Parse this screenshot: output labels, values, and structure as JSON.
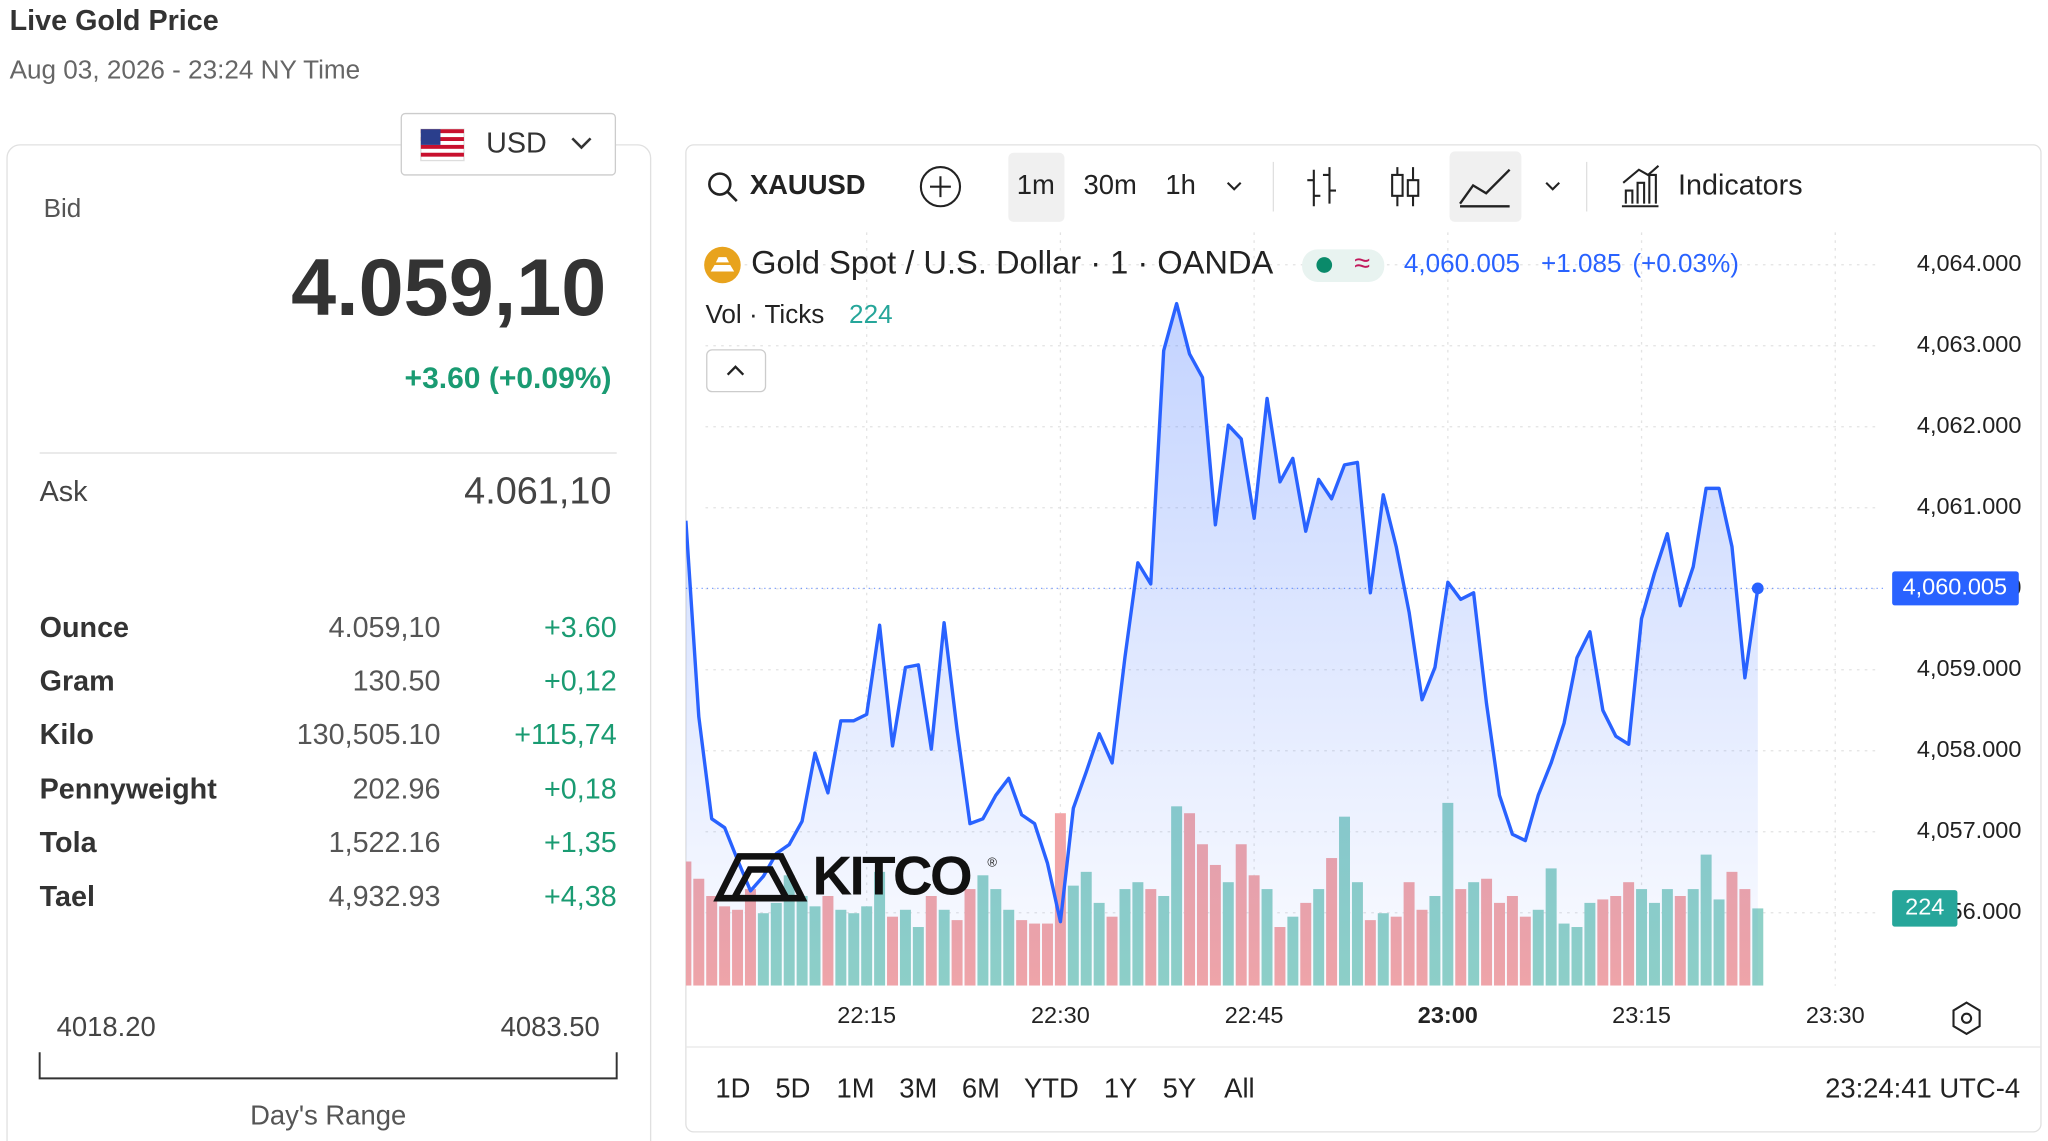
{
  "header": {
    "title": "Live Gold Price",
    "subtitle": "Aug 03, 2026 - 23:24 NY Time"
  },
  "price_panel": {
    "currency": "USD",
    "bid_label": "Bid",
    "bid": "4.059,10",
    "bid_change": "+3.60 (+0.09%)",
    "ask_label": "Ask",
    "ask": "4.061,10",
    "units": [
      {
        "name": "Ounce",
        "price": "4.059,10",
        "change": "+3.60"
      },
      {
        "name": "Gram",
        "price": "130.50",
        "change": "+0,12"
      },
      {
        "name": "Kilo",
        "price": "130,505.10",
        "change": "+115,74"
      },
      {
        "name": "Pennyweight",
        "price": "202.96",
        "change": "+0,18"
      },
      {
        "name": "Tola",
        "price": "1,522.16",
        "change": "+1,35"
      },
      {
        "name": "Tael",
        "price": "4,932.93",
        "change": "+4,38"
      }
    ],
    "range_low": "4018.20",
    "range_high": "4083.50",
    "range_label": "Day's Range"
  },
  "toolbar": {
    "symbol": "XAUUSD",
    "intervals": [
      "1m",
      "30m",
      "1h"
    ],
    "indicators": "Indicators"
  },
  "chart_data": {
    "type": "line",
    "title": "Gold Spot / U.S. Dollar · 1 · OANDA",
    "approx": "≈",
    "last": "4,060.005",
    "change": "+1.085",
    "change_pct": "(+0.03%)",
    "volume_title": "Vol · Ticks",
    "watermark": "KITCO",
    "watermark_mark": "®",
    "color": "#2962ff",
    "x": [
      "22:01",
      "22:02",
      "22:03",
      "22:04",
      "22:05",
      "22:06",
      "22:07",
      "22:08",
      "22:09",
      "22:10",
      "22:11",
      "22:12",
      "22:13",
      "22:14",
      "22:15",
      "22:16",
      "22:17",
      "22:18",
      "22:19",
      "22:20",
      "22:21",
      "22:22",
      "22:23",
      "22:24",
      "22:25",
      "22:26",
      "22:27",
      "22:28",
      "22:29",
      "22:30",
      "22:31",
      "22:32",
      "22:33",
      "22:34",
      "22:35",
      "22:36",
      "22:37",
      "22:38",
      "22:39",
      "22:40",
      "22:41",
      "22:42",
      "22:43",
      "22:44",
      "22:45",
      "22:46",
      "22:47",
      "22:48",
      "22:49",
      "22:50",
      "22:51",
      "22:52",
      "22:53",
      "22:54",
      "22:55",
      "22:56",
      "22:57",
      "22:58",
      "22:59",
      "23:00",
      "23:01",
      "23:02",
      "23:03",
      "23:04",
      "23:05",
      "23:06",
      "23:07",
      "23:08",
      "23:09",
      "23:10",
      "23:11",
      "23:12",
      "23:13",
      "23:14",
      "23:15",
      "23:16",
      "23:17",
      "23:18",
      "23:19",
      "23:20",
      "23:21",
      "23:22",
      "23:23",
      "23:24"
    ],
    "values": [
      4060.84,
      4058.42,
      4057.16,
      4057.05,
      4056.65,
      4056.27,
      4056.45,
      4056.73,
      4056.84,
      4057.13,
      4057.97,
      4057.48,
      4058.37,
      4058.37,
      4058.45,
      4059.55,
      4058.06,
      4059.03,
      4059.06,
      4058.02,
      4059.58,
      4058.26,
      4057.1,
      4057.16,
      4057.45,
      4057.66,
      4057.21,
      4057.1,
      4056.61,
      4055.89,
      4057.29,
      4057.74,
      4058.21,
      4057.85,
      4059.15,
      4060.32,
      4060.06,
      4062.94,
      4063.52,
      4062.9,
      4062.61,
      4060.79,
      4062.02,
      4061.85,
      4060.87,
      4062.35,
      4061.32,
      4061.61,
      4060.71,
      4061.35,
      4061.11,
      4061.53,
      4061.56,
      4059.95,
      4061.16,
      4060.52,
      4059.71,
      4058.63,
      4059.03,
      4060.08,
      4059.87,
      4059.95,
      4058.58,
      4057.45,
      4056.97,
      4056.89,
      4057.45,
      4057.85,
      4058.34,
      4059.15,
      4059.47,
      4058.5,
      4058.18,
      4058.08,
      4059.63,
      4060.19,
      4060.68,
      4059.79,
      4060.27,
      4061.24,
      4061.24,
      4060.52,
      4058.9,
      4060.005
    ],
    "volume": {
      "up_color": "#8fd1c7",
      "down_color": "#f2a5a7",
      "values": [
        360,
        310,
        260,
        230,
        220,
        280,
        210,
        240,
        320,
        260,
        230,
        260,
        220,
        210,
        230,
        330,
        200,
        220,
        170,
        260,
        220,
        190,
        280,
        320,
        280,
        220,
        190,
        180,
        180,
        500,
        290,
        330,
        240,
        200,
        280,
        300,
        280,
        260,
        520,
        500,
        410,
        350,
        300,
        410,
        320,
        280,
        170,
        200,
        240,
        280,
        370,
        490,
        300,
        190,
        210,
        200,
        300,
        220,
        260,
        530,
        280,
        300,
        310,
        240,
        260,
        200,
        220,
        340,
        180,
        170,
        240,
        250,
        260,
        300,
        280,
        240,
        280,
        260,
        280,
        380,
        250,
        330,
        280,
        224
      ]
    },
    "xlim": [
      "22:01",
      "23:34"
    ],
    "xticks": [
      "22:15",
      "22:30",
      "22:45",
      "23:00",
      "23:15",
      "23:30"
    ],
    "ylim": [
      4055.1,
      4064.4
    ],
    "yticks": [
      {
        "value": 4064,
        "label": "4,064.000"
      },
      {
        "value": 4063,
        "label": "4,063.000"
      },
      {
        "value": 4062,
        "label": "4,062.000"
      },
      {
        "value": 4061,
        "label": "4,061.000"
      },
      {
        "value": 4060,
        "label": "4,060.000"
      },
      {
        "value": 4059,
        "label": "4,059.000"
      },
      {
        "value": 4058,
        "label": "4,058.000"
      },
      {
        "value": 4057,
        "label": "4,057.000"
      },
      {
        "value": 4056,
        "label": "4,056.000"
      }
    ],
    "grid": true
  },
  "footer": {
    "ranges": [
      "1D",
      "5D",
      "1M",
      "3M",
      "6M",
      "YTD",
      "1Y",
      "5Y",
      "All"
    ],
    "clock": "23:24:41 UTC-4"
  }
}
